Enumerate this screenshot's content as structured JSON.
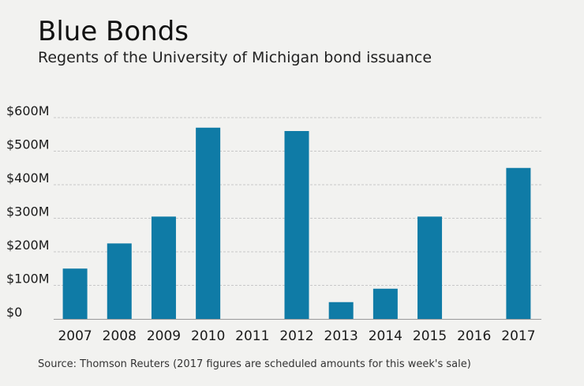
{
  "title": "Blue Bonds",
  "subtitle": "Regents of the University of Michigan bond issuance",
  "source": "Source: Thomson Reuters (2017 figures are scheduled amounts for this week's sale)",
  "chart_data": {
    "type": "bar",
    "title": "Blue Bonds",
    "subtitle": "Regents of the University of Michigan bond issuance",
    "categories": [
      "2007",
      "2008",
      "2009",
      "2010",
      "2011",
      "2012",
      "2013",
      "2014",
      "2015",
      "2016",
      "2017"
    ],
    "values": [
      150,
      225,
      305,
      570,
      0,
      560,
      50,
      90,
      305,
      0,
      450
    ],
    "unit": "millions of dollars",
    "xlabel": "",
    "ylabel": "",
    "ylim": [
      0,
      600
    ],
    "yticks": [
      0,
      100,
      200,
      300,
      400,
      500,
      600
    ],
    "ytick_labels": [
      "$0",
      "$100M",
      "$200M",
      "$300M",
      "$400M",
      "$500M",
      "$600M"
    ],
    "grid": true,
    "bar_color": "#0f7ba6",
    "grid_color": "#c8c8c8"
  }
}
